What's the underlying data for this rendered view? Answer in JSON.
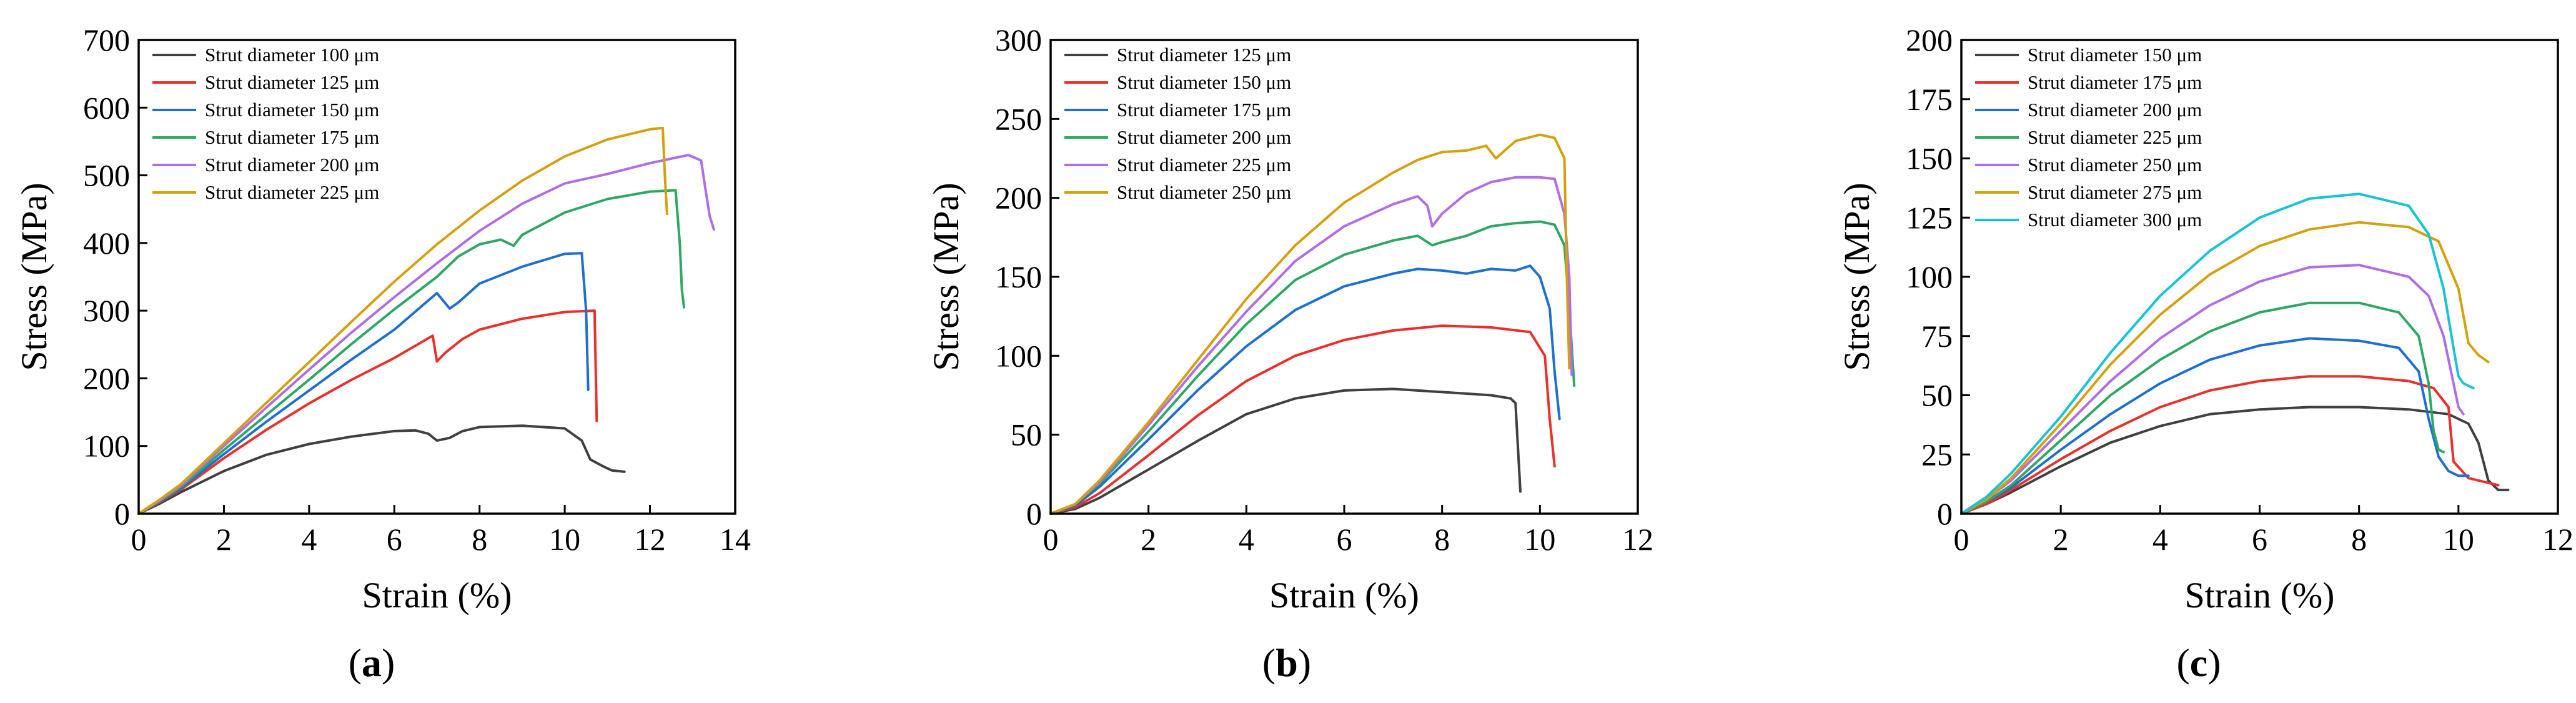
{
  "chart_data": [
    {
      "type": "line",
      "panel_label": "a",
      "xlabel": "Strain (%)",
      "ylabel": "Stress (MPa)",
      "xlim": [
        0,
        14
      ],
      "ylim": [
        0,
        700
      ],
      "xticks": [
        0,
        2,
        4,
        6,
        8,
        10,
        12,
        14
      ],
      "yticks": [
        0,
        100,
        200,
        300,
        400,
        500,
        600,
        700
      ],
      "legend_position": "top-left",
      "series": [
        {
          "name": "Strut diameter 100 μm",
          "color": "#404040",
          "x": [
            0,
            0.5,
            1,
            2,
            3,
            4,
            5,
            6,
            6.5,
            6.8,
            7,
            7.3,
            7.6,
            8,
            9,
            10,
            10.4,
            10.6,
            10.9,
            11.1,
            11.4
          ],
          "y": [
            0,
            15,
            32,
            63,
            87,
            103,
            114,
            122,
            123,
            118,
            108,
            112,
            122,
            128,
            130,
            126,
            108,
            80,
            70,
            64,
            62
          ]
        },
        {
          "name": "Strut diameter 125 μm",
          "color": "#e8312b",
          "x": [
            0,
            0.5,
            1,
            2,
            3,
            4,
            5,
            6,
            6.9,
            7.0,
            7.2,
            7.6,
            8,
            9,
            10,
            10.7,
            10.75
          ],
          "y": [
            0,
            17,
            36,
            82,
            124,
            163,
            198,
            230,
            263,
            225,
            238,
            258,
            272,
            288,
            298,
            300,
            137
          ]
        },
        {
          "name": "Strut diameter 150 μm",
          "color": "#1f6fd1",
          "x": [
            0,
            0.5,
            1,
            2,
            3,
            4,
            5,
            6,
            7,
            7.3,
            7.5,
            8,
            9,
            10,
            10.4,
            10.5,
            10.55
          ],
          "y": [
            0,
            18,
            38,
            88,
            136,
            182,
            228,
            272,
            326,
            303,
            312,
            340,
            365,
            384,
            385,
            300,
            183
          ]
        },
        {
          "name": "Strut diameter 175 μm",
          "color": "#2ea765",
          "x": [
            0,
            0.5,
            1,
            2,
            3,
            4,
            5,
            6,
            7,
            7.5,
            8,
            8.5,
            8.8,
            9,
            10,
            11,
            12,
            12.6,
            12.7,
            12.75,
            12.8
          ],
          "y": [
            0,
            19,
            40,
            94,
            146,
            198,
            251,
            302,
            350,
            380,
            398,
            405,
            396,
            412,
            445,
            465,
            476,
            478,
            400,
            330,
            305
          ]
        },
        {
          "name": "Strut diameter 200 μm",
          "color": "#b06ee6",
          "x": [
            0,
            0.5,
            1,
            2,
            3,
            4,
            5,
            6,
            7,
            8,
            9,
            10,
            11,
            12,
            12.9,
            13.2,
            13.3,
            13.4,
            13.5
          ],
          "y": [
            0,
            20,
            42,
            100,
            157,
            213,
            268,
            320,
            370,
            418,
            458,
            488,
            502,
            518,
            530,
            522,
            480,
            440,
            420
          ]
        },
        {
          "name": "Strut diameter 225 μm",
          "color": "#d4a00e",
          "x": [
            0,
            0.5,
            1,
            2,
            3,
            4,
            5,
            6,
            7,
            8,
            9,
            10,
            11,
            12,
            12.3,
            12.35,
            12.4
          ],
          "y": [
            0,
            21,
            44,
            104,
            164,
            224,
            284,
            343,
            398,
            448,
            492,
            528,
            553,
            568,
            570,
            500,
            443
          ]
        }
      ]
    },
    {
      "type": "line",
      "panel_label": "b",
      "xlabel": "Strain (%)",
      "ylabel": "Stress (MPa)",
      "xlim": [
        0,
        12
      ],
      "ylim": [
        0,
        300
      ],
      "xticks": [
        0,
        2,
        4,
        6,
        8,
        10,
        12
      ],
      "yticks": [
        0,
        50,
        100,
        150,
        200,
        250,
        300
      ],
      "legend_position": "top-left",
      "series": [
        {
          "name": "Strut diameter 125 μm",
          "color": "#404040",
          "x": [
            0,
            0.5,
            1,
            2,
            3,
            4,
            5,
            6,
            7,
            8,
            9,
            9.4,
            9.5,
            9.6
          ],
          "y": [
            0,
            3,
            10,
            28,
            46,
            63,
            73,
            78,
            79,
            77,
            75,
            73,
            70,
            14
          ]
        },
        {
          "name": "Strut diameter 150 μm",
          "color": "#e8312b",
          "x": [
            0,
            0.5,
            1,
            2,
            3,
            4,
            5,
            6,
            7,
            8,
            9,
            9.8,
            10.1,
            10.2,
            10.3
          ],
          "y": [
            0,
            4,
            13,
            37,
            62,
            84,
            100,
            110,
            116,
            119,
            118,
            115,
            100,
            60,
            30
          ]
        },
        {
          "name": "Strut diameter 175 μm",
          "color": "#1f6fd1",
          "x": [
            0,
            0.5,
            1,
            2,
            3,
            4,
            5,
            6,
            7,
            7.5,
            8,
            8.5,
            9,
            9.5,
            9.8,
            10,
            10.2,
            10.3,
            10.4
          ],
          "y": [
            0,
            5,
            17,
            47,
            78,
            106,
            129,
            144,
            152,
            155,
            154,
            152,
            155,
            154,
            157,
            150,
            130,
            90,
            60
          ]
        },
        {
          "name": "Strut diameter 200 μm",
          "color": "#2ea765",
          "x": [
            0,
            0.5,
            1,
            2,
            3,
            4,
            5,
            6,
            7,
            7.5,
            7.8,
            8,
            8.5,
            9,
            9.5,
            10,
            10.3,
            10.5,
            10.6,
            10.7
          ],
          "y": [
            0,
            6,
            19,
            52,
            87,
            120,
            148,
            164,
            173,
            176,
            170,
            172,
            176,
            182,
            184,
            185,
            183,
            170,
            130,
            81
          ]
        },
        {
          "name": "Strut diameter 225 μm",
          "color": "#b06ee6",
          "x": [
            0,
            0.5,
            1,
            2,
            3,
            4,
            5,
            6,
            7,
            7.5,
            7.7,
            7.8,
            8,
            8.5,
            9,
            9.5,
            10,
            10.3,
            10.5,
            10.6,
            10.65
          ],
          "y": [
            0,
            6,
            20,
            56,
            93,
            128,
            160,
            182,
            196,
            201,
            195,
            182,
            190,
            203,
            210,
            213,
            213,
            212,
            190,
            150,
            88
          ]
        },
        {
          "name": "Strut diameter 250 μm",
          "color": "#d4a00e",
          "x": [
            0,
            0.5,
            1,
            2,
            3,
            4,
            5,
            6,
            7,
            7.5,
            8,
            8.5,
            8.9,
            9.1,
            9.5,
            10,
            10.3,
            10.5,
            10.55,
            10.6
          ],
          "y": [
            0,
            6,
            21,
            58,
            97,
            136,
            170,
            197,
            216,
            224,
            229,
            230,
            233,
            225,
            236,
            240,
            238,
            225,
            150,
            92
          ]
        }
      ]
    },
    {
      "type": "line",
      "panel_label": "c",
      "xlabel": "Strain (%)",
      "ylabel": "Stress (MPa)",
      "xlim": [
        0,
        12
      ],
      "ylim": [
        0,
        200
      ],
      "xticks": [
        0,
        2,
        4,
        6,
        8,
        10,
        12
      ],
      "yticks": [
        0,
        25,
        50,
        75,
        100,
        125,
        150,
        175,
        200
      ],
      "legend_position": "top-left",
      "series": [
        {
          "name": "Strut diameter 150 μm",
          "color": "#404040",
          "x": [
            0,
            0.5,
            1,
            2,
            3,
            4,
            5,
            6,
            7,
            8,
            9,
            9.8,
            10.2,
            10.4,
            10.6,
            10.8,
            11.0
          ],
          "y": [
            0,
            4,
            9,
            20,
            30,
            37,
            42,
            44,
            45,
            45,
            44,
            42,
            38,
            30,
            14,
            10,
            10
          ]
        },
        {
          "name": "Strut diameter 175 μm",
          "color": "#e8312b",
          "x": [
            0,
            0.5,
            1,
            2,
            3,
            4,
            5,
            6,
            7,
            8,
            9,
            9.5,
            9.8,
            9.9,
            10.2,
            10.6,
            10.8
          ],
          "y": [
            0,
            4,
            10,
            23,
            35,
            45,
            52,
            56,
            58,
            58,
            56,
            53,
            45,
            22,
            15,
            13,
            12
          ]
        },
        {
          "name": "Strut diameter 200 μm",
          "color": "#1f6fd1",
          "x": [
            0,
            0.5,
            1,
            2,
            3,
            4,
            5,
            6,
            7,
            8,
            8.8,
            9.2,
            9.4,
            9.6,
            9.8,
            10.0,
            10.2
          ],
          "y": [
            0,
            5,
            11,
            27,
            42,
            55,
            65,
            71,
            74,
            73,
            70,
            60,
            40,
            24,
            18,
            16,
            16
          ]
        },
        {
          "name": "Strut diameter 225 μm",
          "color": "#2ea765",
          "x": [
            0,
            0.5,
            1,
            2,
            3,
            4,
            5,
            6,
            7,
            8,
            8.8,
            9.2,
            9.4,
            9.5,
            9.6,
            9.7
          ],
          "y": [
            0,
            5,
            12,
            31,
            50,
            65,
            77,
            85,
            89,
            89,
            85,
            75,
            55,
            35,
            27,
            26
          ]
        },
        {
          "name": "Strut diameter 250 μm",
          "color": "#b06ee6",
          "x": [
            0,
            0.5,
            1,
            2,
            3,
            4,
            5,
            6,
            7,
            8,
            9,
            9.4,
            9.7,
            9.9,
            10.0,
            10.1
          ],
          "y": [
            0,
            6,
            14,
            35,
            56,
            74,
            88,
            98,
            104,
            105,
            100,
            92,
            75,
            55,
            45,
            42
          ]
        },
        {
          "name": "Strut diameter 275 μm",
          "color": "#d4a00e",
          "x": [
            0,
            0.5,
            1,
            2,
            3,
            4,
            5,
            6,
            7,
            8,
            9,
            9.6,
            10.0,
            10.2,
            10.4,
            10.6
          ],
          "y": [
            0,
            6,
            15,
            38,
            63,
            84,
            101,
            113,
            120,
            123,
            121,
            115,
            95,
            72,
            67,
            64
          ]
        },
        {
          "name": "Strut diameter 300 μm",
          "color": "#17c3d4",
          "x": [
            0,
            0.5,
            1,
            2,
            3,
            4,
            5,
            6,
            7,
            8,
            9,
            9.4,
            9.7,
            9.9,
            10.0,
            10.1,
            10.3
          ],
          "y": [
            0,
            7,
            17,
            41,
            68,
            92,
            111,
            125,
            133,
            135,
            130,
            118,
            95,
            70,
            58,
            55,
            53
          ]
        }
      ]
    }
  ]
}
